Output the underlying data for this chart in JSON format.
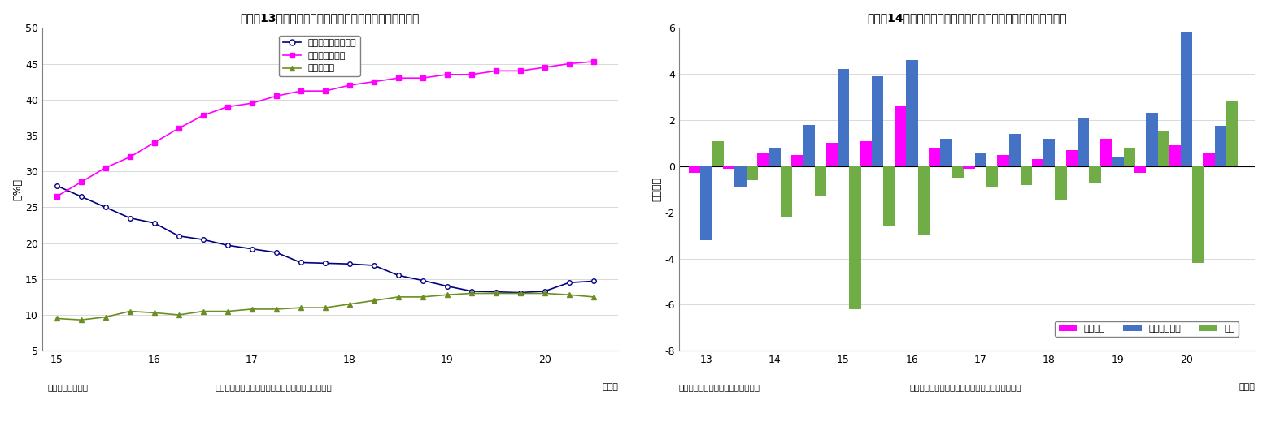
{
  "chart13": {
    "title": "（図表13）預金取扱機関と日銀、海外の国債保有シェア",
    "ylabel": "（%）",
    "xlabel_note": "（年）",
    "footer_left": "（資料）日本銀行",
    "footer_right": "（注）国債は、国庫短期証券と国債・財投債の合計",
    "ylim": [
      5,
      50
    ],
    "yticks": [
      5,
      10,
      15,
      20,
      25,
      30,
      35,
      40,
      45,
      50
    ],
    "x_labels": [
      "15",
      "16",
      "17",
      "18",
      "19",
      "20"
    ],
    "series": {
      "deposits": {
        "label": "預金取扱機関シェア",
        "color": "#000080",
        "marker": "o",
        "markerfacecolor": "white",
        "x": [
          15.0,
          15.25,
          15.5,
          15.75,
          16.0,
          16.25,
          16.5,
          16.75,
          17.0,
          17.25,
          17.5,
          17.75,
          18.0,
          18.25,
          18.5,
          18.75,
          19.0,
          19.25,
          19.5,
          19.75,
          20.0,
          20.25,
          20.5
        ],
        "y": [
          28.0,
          26.5,
          25.0,
          23.5,
          22.8,
          21.0,
          20.5,
          19.7,
          19.2,
          18.7,
          17.3,
          17.2,
          17.1,
          16.9,
          15.5,
          14.8,
          14.0,
          13.3,
          13.2,
          13.1,
          13.3,
          14.5,
          14.7
        ]
      },
      "boj": {
        "label": "日本銀行シェア",
        "color": "#FF00FF",
        "marker": "s",
        "markerfacecolor": "#FF00FF",
        "x": [
          15.0,
          15.25,
          15.5,
          15.75,
          16.0,
          16.25,
          16.5,
          16.75,
          17.0,
          17.25,
          17.5,
          17.75,
          18.0,
          18.25,
          18.5,
          18.75,
          19.0,
          19.25,
          19.5,
          19.75,
          20.0,
          20.25,
          20.5
        ],
        "y": [
          26.5,
          28.5,
          30.5,
          32.0,
          34.0,
          36.0,
          37.8,
          39.0,
          39.5,
          40.5,
          41.2,
          41.2,
          42.0,
          42.5,
          43.0,
          43.0,
          43.5,
          43.5,
          44.0,
          44.0,
          44.5,
          45.0,
          45.3
        ]
      },
      "overseas": {
        "label": "海外シェア",
        "color": "#6B8E23",
        "marker": "^",
        "markerfacecolor": "#6B8E23",
        "x": [
          15.0,
          15.25,
          15.5,
          15.75,
          16.0,
          16.25,
          16.5,
          16.75,
          17.0,
          17.25,
          17.5,
          17.75,
          18.0,
          18.25,
          18.5,
          18.75,
          19.0,
          19.25,
          19.5,
          19.75,
          20.0,
          20.25,
          20.5
        ],
        "y": [
          9.5,
          9.3,
          9.7,
          10.5,
          10.3,
          10.0,
          10.5,
          10.5,
          10.8,
          10.8,
          11.0,
          11.0,
          11.5,
          12.0,
          12.5,
          12.5,
          12.8,
          13.0,
          13.0,
          13.0,
          13.0,
          12.8,
          12.5
        ]
      }
    }
  },
  "chart14": {
    "title": "（図表14）公的年金の株・対外証券・国債投資（資金フロー）",
    "ylabel": "（兆円）",
    "xlabel_note": "（年）",
    "footer_left": "（資料）日本銀行「資金循環統計」",
    "footer_right": "（注）国債は財投債を含み、国庫短期証券を除く",
    "ylim": [
      -8,
      6
    ],
    "yticks": [
      -8,
      -6,
      -4,
      -2,
      0,
      2,
      4,
      6
    ],
    "x_labels": [
      "13",
      "14",
      "15",
      "16",
      "17",
      "18",
      "19",
      "20"
    ],
    "categories": [
      13.0,
      13.5,
      14.0,
      14.5,
      15.0,
      15.5,
      16.0,
      16.5,
      17.0,
      17.5,
      18.0,
      18.5,
      19.0,
      19.5,
      20.0,
      20.5
    ],
    "stocks": {
      "label": "上場株式",
      "color": "#FF00FF",
      "values": [
        -0.3,
        -0.1,
        0.6,
        0.5,
        1.0,
        1.1,
        2.6,
        0.8,
        -0.1,
        0.5,
        0.3,
        0.7,
        1.2,
        -0.3,
        0.9,
        0.55
      ]
    },
    "foreign": {
      "label": "対外証券投資",
      "color": "#4472C4",
      "values": [
        -3.2,
        -0.9,
        0.8,
        1.8,
        4.2,
        3.9,
        4.6,
        1.2,
        0.6,
        1.4,
        1.2,
        2.1,
        0.4,
        2.3,
        5.8,
        1.75
      ]
    },
    "bonds": {
      "label": "国債",
      "color": "#70AD47",
      "values": [
        1.1,
        -0.6,
        -2.2,
        -1.3,
        -6.2,
        -2.6,
        -3.0,
        -0.5,
        -0.9,
        -0.8,
        -1.5,
        -0.7,
        0.8,
        1.5,
        -4.2,
        2.8
      ]
    }
  }
}
